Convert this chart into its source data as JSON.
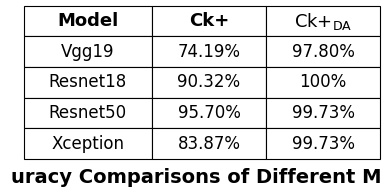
{
  "title": "uracy Comparisons of Different M",
  "col_labels": [
    "Model",
    "Ck+",
    "Ck+DA"
  ],
  "rows": [
    [
      "Vgg19",
      "74.19%",
      "97.80%"
    ],
    [
      "Resnet18",
      "90.32%",
      "100%"
    ],
    [
      "Resnet50",
      "95.70%",
      "99.73%"
    ],
    [
      "Xception",
      "83.87%",
      "99.73%"
    ]
  ],
  "bg_color": "#ffffff",
  "text_color": "#000000",
  "line_color": "#000000",
  "title_fontsize": 14,
  "header_fontsize": 13,
  "cell_fontsize": 12,
  "fig_width": 3.92,
  "fig_height": 1.94
}
